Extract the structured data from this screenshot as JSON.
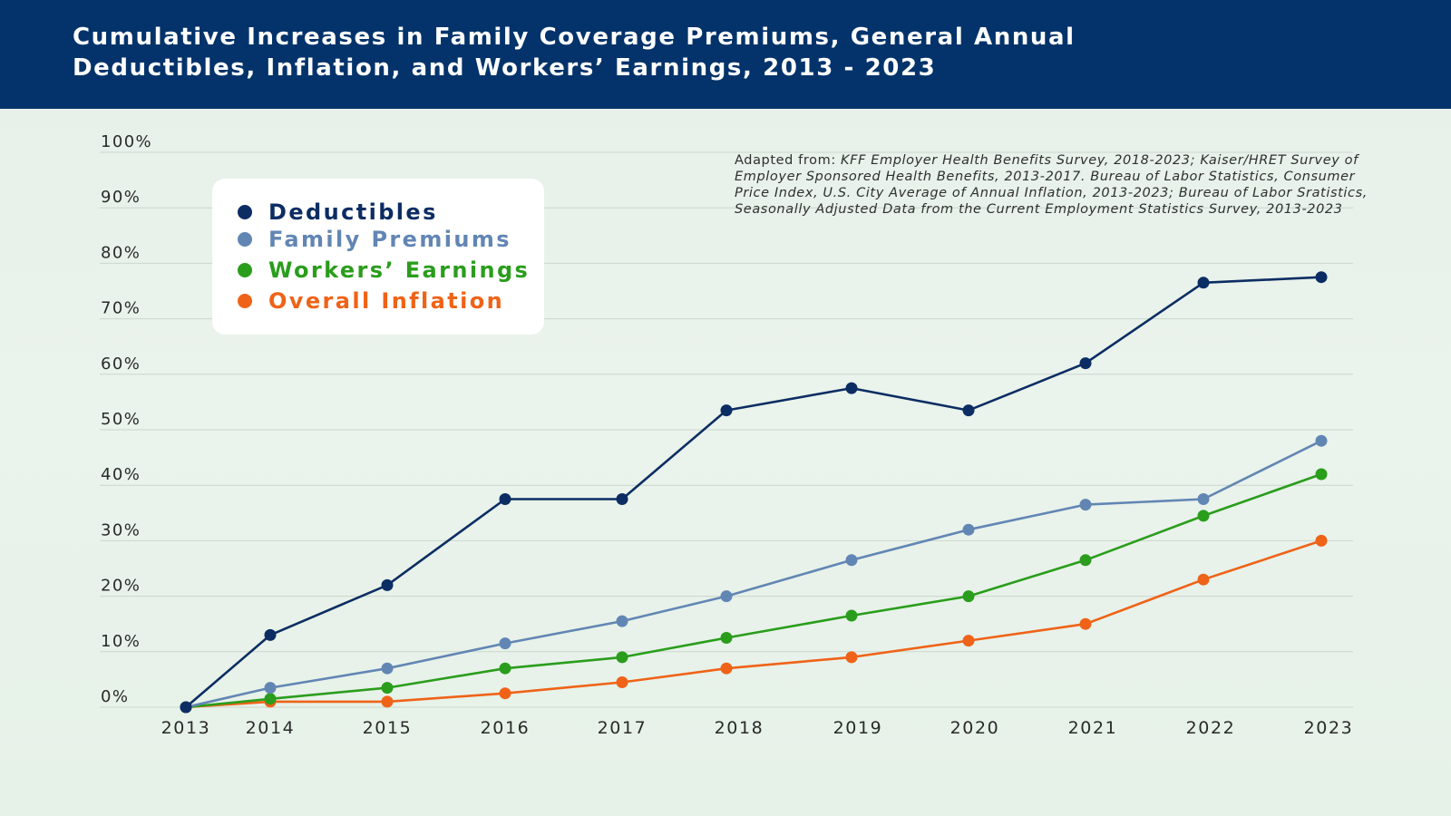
{
  "title": {
    "line1": "Cumulative Increases in Family Coverage Premiums, General Annual",
    "line2": "Deductibles, Inflation, and Workers’ Earnings, 2013 - 2023"
  },
  "source": {
    "prefix": "Adapted from: ",
    "italic": "KFF Employer Health Benefits Survey, 2018-2023; Kaiser/HRET Survey of Employer Sponsored Health Benefits, 2013-2017. Bureau of Labor Statistics, Consumer Price Index, U.S. City Average of Annual Inflation, 2013-2023; Bureau of Labor Sratistics, Seasonally Adjusted Data from the Current Employment Statistics Survey, 2013-2023"
  },
  "colors": {
    "header": "#03336a",
    "deductibles": "#0c2d63",
    "premiums": "#6286b4",
    "earnings": "#2a9d1c",
    "inflation": "#ef6318"
  },
  "chart_data": {
    "type": "line",
    "title": "Cumulative Increases in Family Coverage Premiums, General Annual Deductibles, Inflation, and Workers’ Earnings, 2013 - 2023",
    "xlabel": "",
    "ylabel": "",
    "x": [
      "2013",
      "2014",
      "2015",
      "2016",
      "2017",
      "2018",
      "2019",
      "2020",
      "2021",
      "2022",
      "2023"
    ],
    "ylim": [
      0,
      100
    ],
    "yticks": [
      "0%",
      "10%",
      "20%",
      "30%",
      "40%",
      "50%",
      "60%",
      "70%",
      "80%",
      "90%",
      "100%"
    ],
    "grid": true,
    "legend_position": "top-left",
    "series": [
      {
        "name": "Deductibles",
        "color": "#0c2d63",
        "values": [
          0,
          13,
          22,
          37.5,
          37.5,
          53.5,
          57.5,
          53.5,
          62,
          76.5,
          77.5
        ]
      },
      {
        "name": "Family Premiums",
        "color": "#6286b4",
        "values": [
          0,
          3.5,
          7,
          11.5,
          15.5,
          20,
          26.5,
          32,
          36.5,
          37.5,
          48
        ]
      },
      {
        "name": "Workers’ Earnings",
        "color": "#2a9d1c",
        "values": [
          0,
          1.5,
          3.5,
          7,
          9,
          12.5,
          16.5,
          20,
          26.5,
          34.5,
          42
        ]
      },
      {
        "name": "Overall Inflation",
        "color": "#ef6318",
        "values": [
          0,
          1,
          1,
          2.5,
          4.5,
          7,
          9,
          12,
          15,
          23,
          30
        ]
      }
    ]
  }
}
